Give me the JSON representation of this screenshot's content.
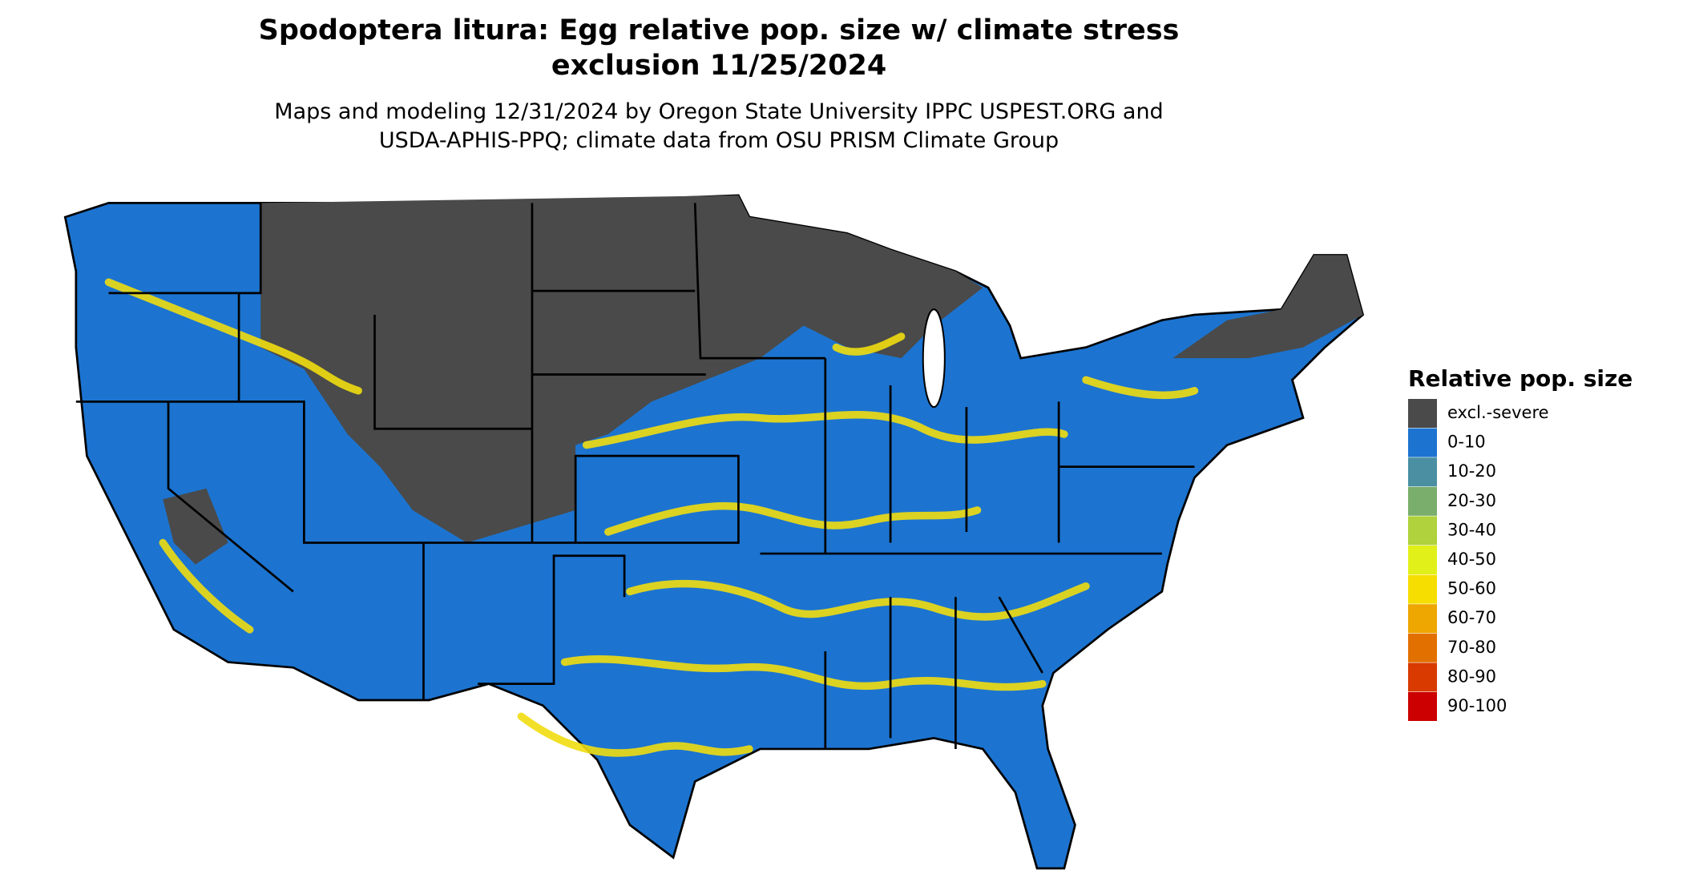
{
  "title_lines": [
    "Spodoptera litura: Egg relative pop. size w/ climate stress",
    "exclusion 11/25/2024"
  ],
  "subtitle_lines": [
    "Maps and modeling 12/31/2024 by Oregon State University IPPC USPEST.ORG and",
    "USDA-APHIS-PPQ; climate data from OSU PRISM Climate Group"
  ],
  "legend": {
    "title": "Relative pop. size",
    "items": [
      {
        "label": "excl.-severe",
        "color": "#4a4a4a"
      },
      {
        "label": "0-10",
        "color": "#1c74d0"
      },
      {
        "label": "10-20",
        "color": "#4a90a2"
      },
      {
        "label": "20-30",
        "color": "#7aae6c"
      },
      {
        "label": "30-40",
        "color": "#b0d23c"
      },
      {
        "label": "40-50",
        "color": "#e2f01a"
      },
      {
        "label": "50-60",
        "color": "#f6df00"
      },
      {
        "label": "60-70",
        "color": "#eea600"
      },
      {
        "label": "70-80",
        "color": "#e27000"
      },
      {
        "label": "80-90",
        "color": "#d83a00"
      },
      {
        "label": "90-100",
        "color": "#cc0000"
      }
    ]
  }
}
